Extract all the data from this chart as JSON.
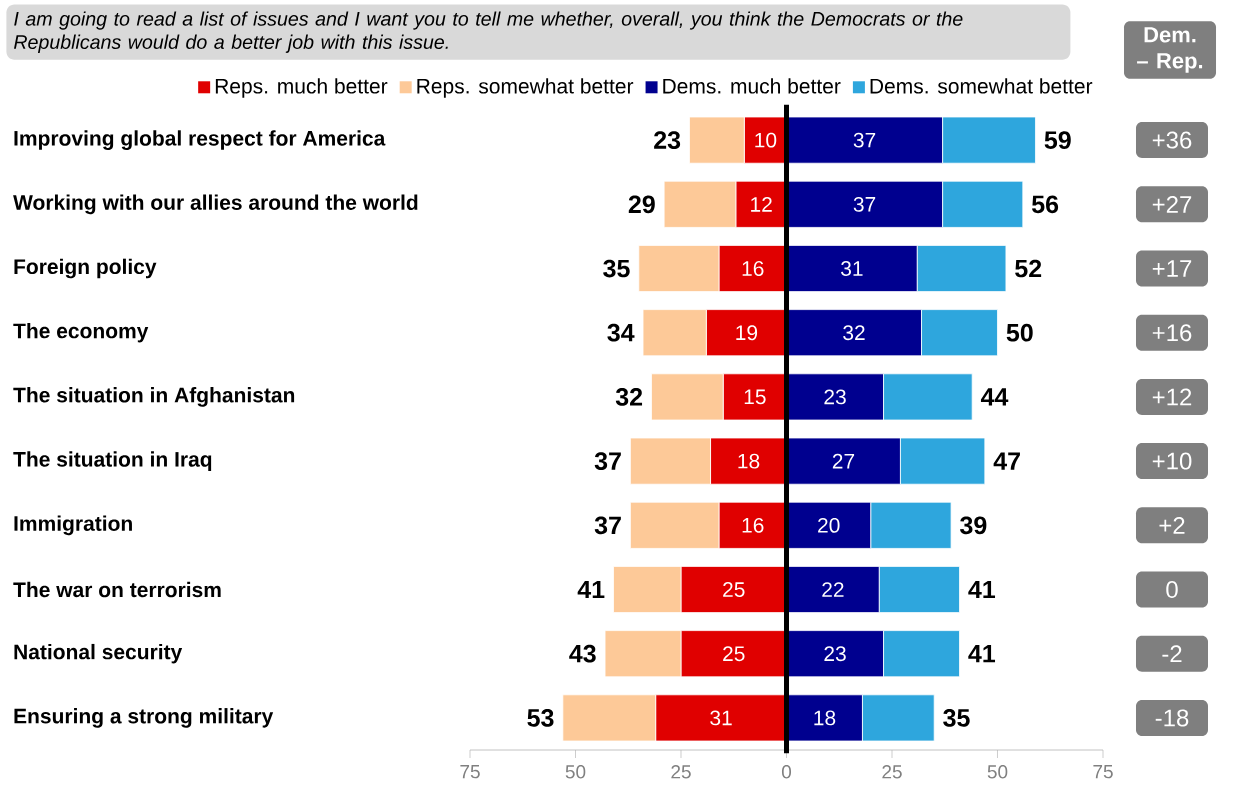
{
  "chart_data": {
    "type": "bar",
    "orientation": "horizontal",
    "legend": "top",
    "title": "I am going to read a list of issues and I want you to tell me whether, overall, you think the Democrats or the Republicans would do a better job with this issue.",
    "categories": [
      "Improving global respect for America",
      "Working with our allies around the world",
      "Foreign policy",
      "The economy",
      "The situation in Afghanistan",
      "The situation in Iraq",
      "Immigration",
      "The war on terrorism",
      "National security",
      "Ensuring a strong military"
    ],
    "series": [
      {
        "name": "Reps. much better",
        "color": "#e00000",
        "base": [
          -10,
          -12,
          -16,
          -19,
          -15,
          -18,
          -16,
          -25,
          -25,
          -31
        ],
        "values": [
          10,
          12,
          16,
          19,
          15,
          18,
          16,
          25,
          25,
          31
        ],
        "value_labels": [
          "10",
          "12",
          "16",
          "19",
          "15",
          "18",
          "16",
          "25",
          "25",
          "31"
        ]
      },
      {
        "name": "Reps. somewhat better",
        "color": "#fdc998",
        "base": [
          -23,
          -29,
          -35,
          -34,
          -32,
          -37,
          -37,
          -41,
          -43,
          -53
        ],
        "values": [
          13,
          17,
          19,
          15,
          17,
          19,
          21,
          16,
          18,
          22
        ]
      },
      {
        "name": "Dems. much better",
        "color": "#00008f",
        "base": [
          0,
          0,
          0,
          0,
          0,
          0,
          0,
          0,
          0,
          0
        ],
        "values": [
          37,
          37,
          31,
          32,
          23,
          27,
          20,
          22,
          23,
          18
        ],
        "value_labels": [
          "37",
          "37",
          "31",
          "32",
          "23",
          "27",
          "20",
          "22",
          "23",
          "18"
        ]
      },
      {
        "name": "Dems. somewhat better",
        "color": "#2ea6dd",
        "base": [
          37,
          37,
          31,
          32,
          23,
          27,
          20,
          22,
          23,
          18
        ],
        "values": [
          22,
          19,
          21,
          18,
          21,
          20,
          19,
          19,
          18,
          17
        ]
      }
    ],
    "xlim": [
      -75,
      75
    ],
    "xticks": [
      {
        "value": -75,
        "label": "75"
      },
      {
        "value": -50,
        "label": "50"
      },
      {
        "value": -25,
        "label": "25"
      },
      0,
      25,
      50,
      75
    ],
    "ref_lines": [
      {
        "axis": "x",
        "value": 0,
        "color": "#000000"
      }
    ],
    "annotations": [
      "Dem. – Rep.",
      {
        "text": "23",
        "x": -23,
        "y": "Improving global respect for America"
      },
      {
        "text": "59",
        "x": 59,
        "y": "Improving global respect for America"
      },
      "+36",
      {
        "text": "29",
        "x": -29,
        "y": "Working with our allies around the world"
      },
      {
        "text": "56",
        "x": 56,
        "y": "Working with our allies around the world"
      },
      "+27",
      {
        "text": "35",
        "x": -35,
        "y": "Foreign policy"
      },
      {
        "text": "52",
        "x": 52,
        "y": "Foreign policy"
      },
      "+17",
      {
        "text": "34",
        "x": -34,
        "y": "The economy"
      },
      {
        "text": "50",
        "x": 50,
        "y": "The economy"
      },
      "+16",
      {
        "text": "32",
        "x": -32,
        "y": "The situation in Afghanistan"
      },
      {
        "text": "44",
        "x": 44,
        "y": "The situation in Afghanistan"
      },
      "+12",
      {
        "text": "37",
        "x": -37,
        "y": "The situation in Iraq"
      },
      {
        "text": "47",
        "x": 47,
        "y": "The situation in Iraq"
      },
      "+10",
      {
        "text": "37",
        "x": -37,
        "y": "Immigration"
      },
      {
        "text": "39",
        "x": 39,
        "y": "Immigration"
      },
      "+2",
      {
        "text": "41",
        "x": -41,
        "y": "The war on terrorism"
      },
      {
        "text": "41",
        "x": 41,
        "y": "The war on terrorism"
      },
      "0",
      {
        "text": "43",
        "x": -43,
        "y": "National security"
      },
      {
        "text": "41",
        "x": 41,
        "y": "National security"
      },
      "-2",
      {
        "text": "53",
        "x": -53,
        "y": "Ensuring a strong military"
      },
      {
        "text": "35",
        "x": 35,
        "y": "Ensuring a strong military"
      },
      "-18"
    ]
  }
}
